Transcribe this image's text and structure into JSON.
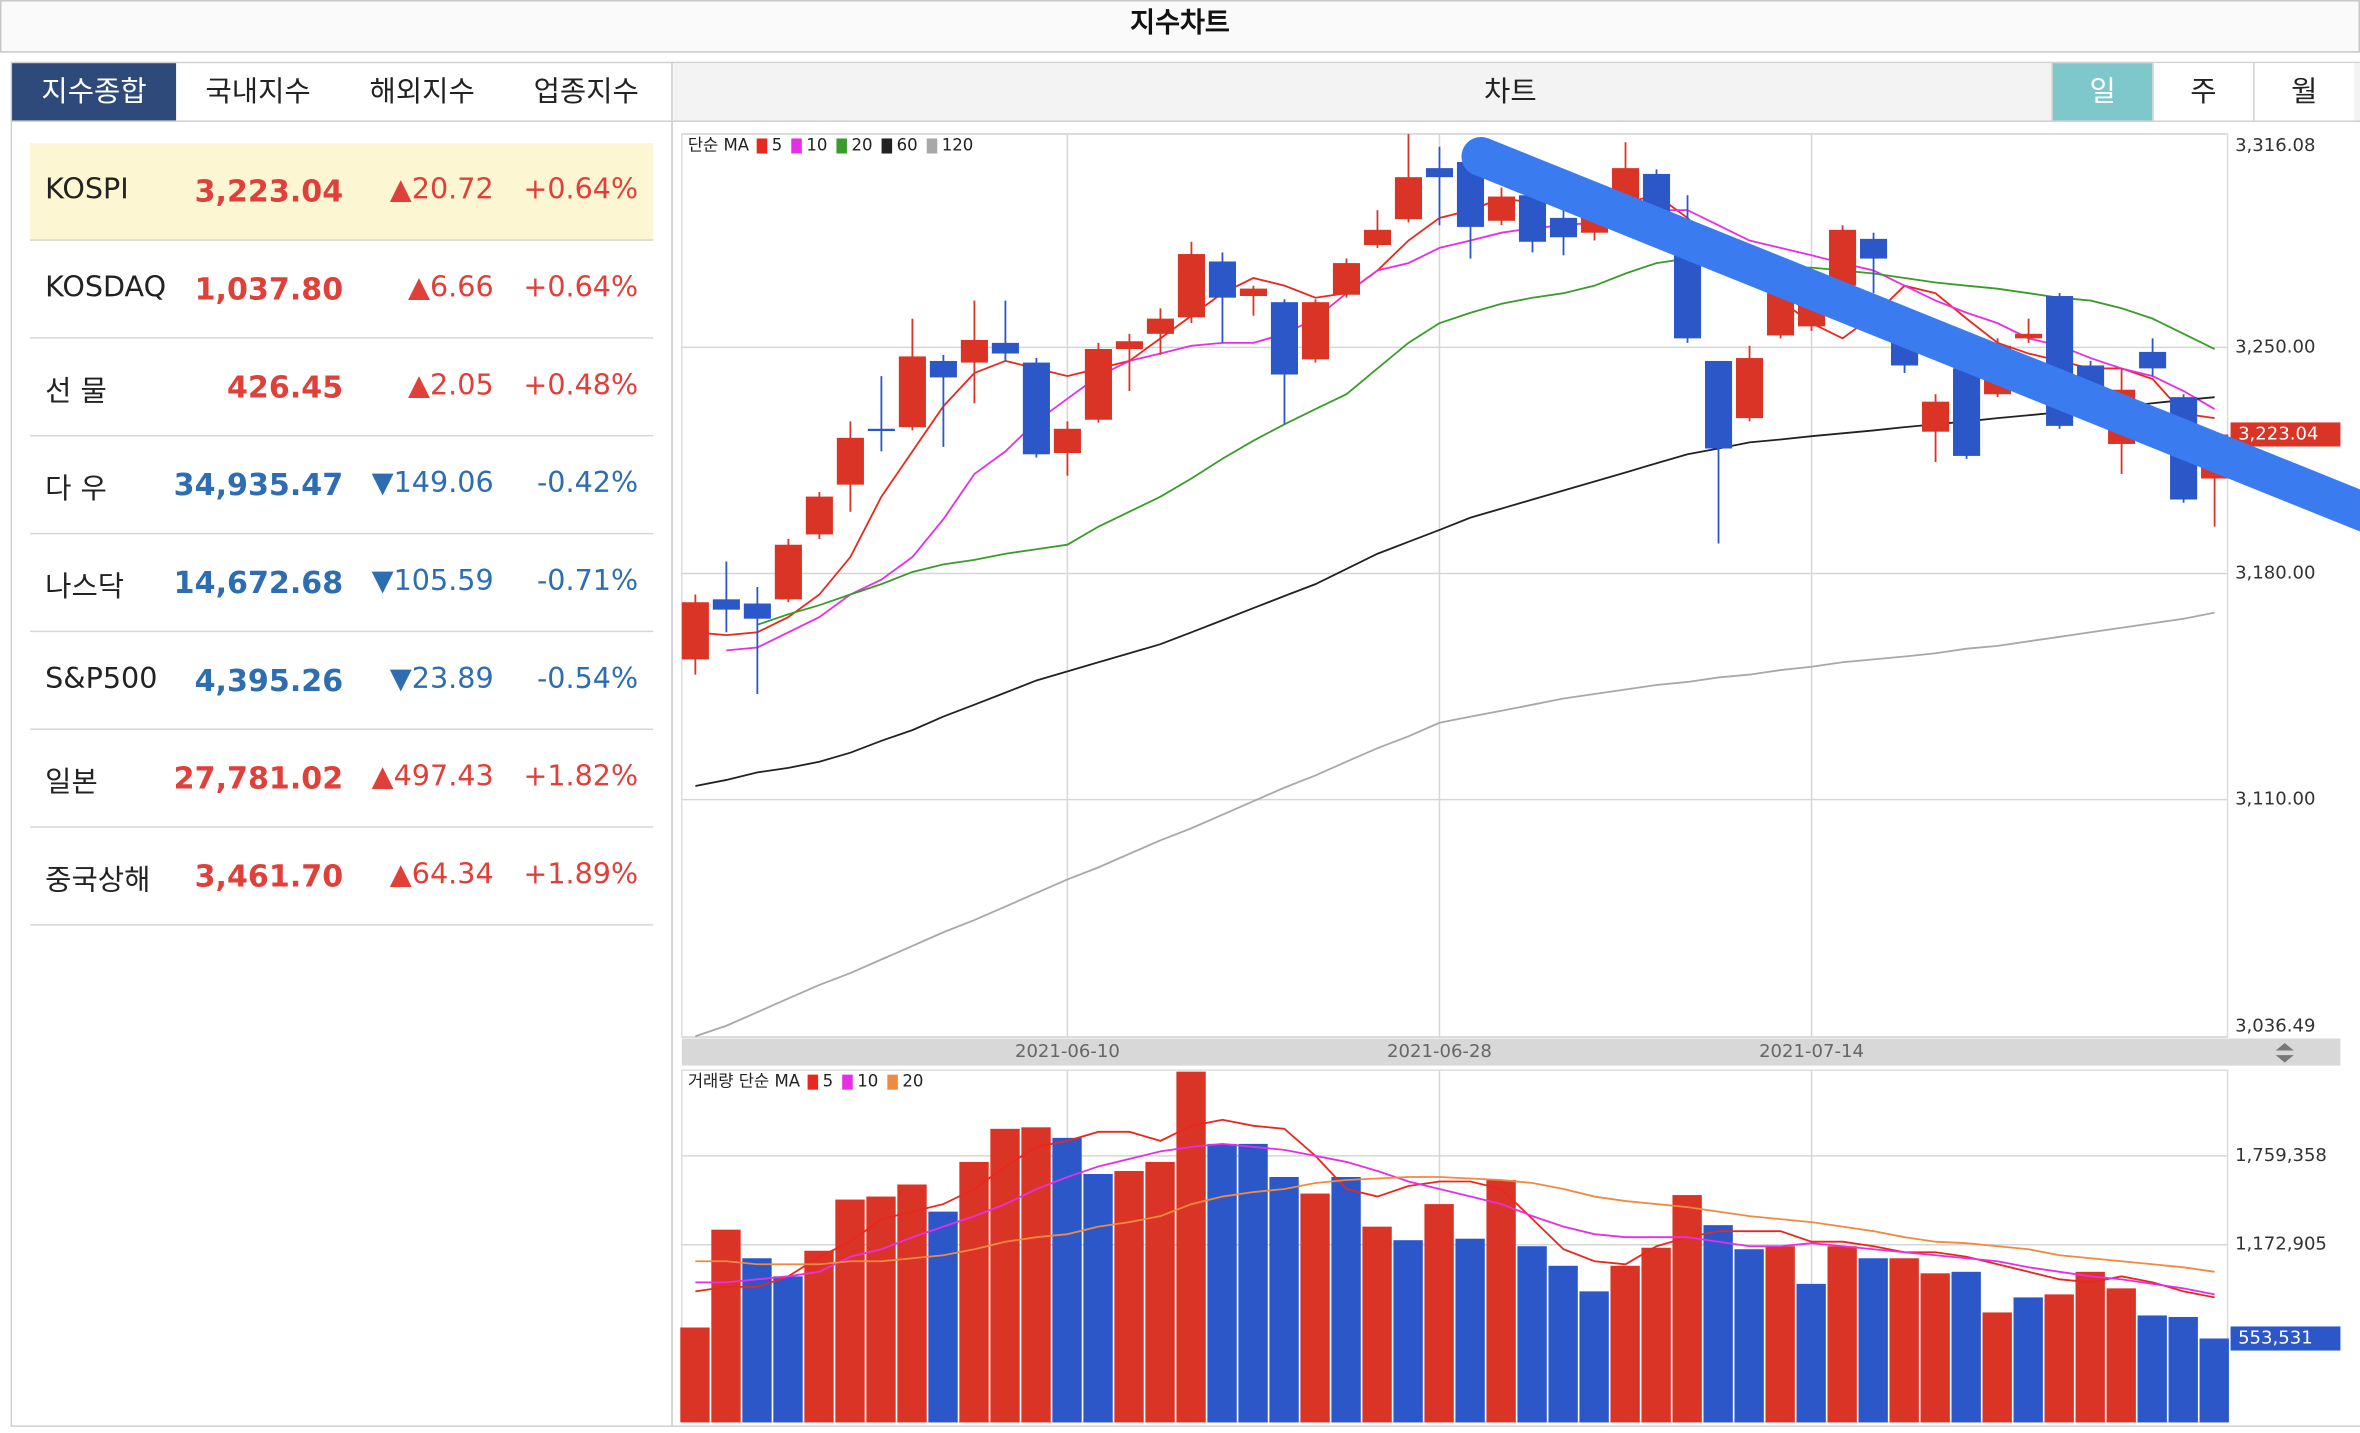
{
  "header": {
    "title": "지수차트"
  },
  "tabs": {
    "items": [
      "지수종합",
      "국내지수",
      "해외지수",
      "업종지수"
    ],
    "active": 0
  },
  "index_list": [
    {
      "name": "KOSPI",
      "price": "3,223.04",
      "change": "▲20.72",
      "change_pct": "+0.64%",
      "color": "#e0403a"
    },
    {
      "name": "KOSDAQ",
      "price": "1,037.80",
      "change": "▲6.66",
      "change_pct": "+0.64%",
      "color": "#e0403a"
    },
    {
      "name": "선 물",
      "price": "426.45",
      "change": "▲2.05",
      "change_pct": "+0.48%",
      "color": "#e0403a"
    },
    {
      "name": "다 우",
      "price": "34,935.47",
      "change": "▼149.06",
      "change_pct": "-0.42%",
      "color": "#2e6db0"
    },
    {
      "name": "나스닥",
      "price": "14,672.68",
      "change": "▼105.59",
      "change_pct": "-0.71%",
      "color": "#2e6db0"
    },
    {
      "name": "S&P500",
      "price": "4,395.26",
      "change": "▼23.89",
      "change_pct": "-0.54%",
      "color": "#2e6db0"
    },
    {
      "name": "일본",
      "price": "27,781.02",
      "change": "▲497.43",
      "change_pct": "+1.82%",
      "color": "#e0403a"
    },
    {
      "name": "중국상해",
      "price": "3,461.70",
      "change": "▲64.34",
      "change_pct": "+1.89%",
      "color": "#e0403a"
    }
  ],
  "chart_panel": {
    "title": "차트",
    "periods": [
      "일",
      "주",
      "월"
    ],
    "active": 0
  },
  "chart_data": [
    {
      "type": "candlestick",
      "legend_title": "단순 MA",
      "categories": [
        null,
        null,
        null,
        null,
        null,
        null,
        null,
        null,
        null,
        null,
        null,
        null,
        "2021-06-10",
        null,
        null,
        null,
        null,
        null,
        null,
        null,
        null,
        null,
        null,
        null,
        "2021-06-28",
        null,
        null,
        null,
        null,
        null,
        null,
        null,
        null,
        null,
        null,
        null,
        "2021-07-14",
        null,
        null,
        null,
        null,
        null,
        null,
        null,
        null,
        null,
        null,
        null,
        null,
        null
      ],
      "open": [
        3153.4,
        3172.0,
        3170.7,
        3172.0,
        3192.1,
        3207.5,
        3224.8,
        3225.3,
        3245.8,
        3245.3,
        3251.4,
        3245.3,
        3217.3,
        3227.6,
        3249.5,
        3254.2,
        3259.3,
        3276.6,
        3265.9,
        3264.0,
        3246.3,
        3266.3,
        3281.7,
        3289.7,
        3305.5,
        3307.4,
        3289.2,
        3297.1,
        3290.1,
        3285.5,
        3295.7,
        3303.7,
        3287.8,
        3245.8,
        3228.1,
        3253.7,
        3256.5,
        3269.1,
        3283.6,
        3258.9,
        3223.9,
        3243.5,
        3235.5,
        3252.8,
        3265.9,
        3244.4,
        3220.1,
        3248.6,
        3234.6,
        3209.4
      ],
      "high": [
        3173.5,
        3183.7,
        3175.8,
        3190.7,
        3205.2,
        3227.1,
        3241.1,
        3258.9,
        3247.7,
        3264.5,
        3264.5,
        3246.7,
        3227.1,
        3251.4,
        3254.2,
        3262.1,
        3282.7,
        3279.4,
        3269.1,
        3264.9,
        3264.9,
        3277.5,
        3292.5,
        3316.08,
        3312.1,
        3311.1,
        3299.5,
        3298.1,
        3292.5,
        3298.1,
        3313.5,
        3305.1,
        3297.1,
        3245.8,
        3250.5,
        3268.2,
        3272.9,
        3287.8,
        3285.5,
        3262.1,
        3235.5,
        3245.8,
        3252.8,
        3258.9,
        3266.8,
        3245.8,
        3243.5,
        3252.8,
        3235.5,
        3223.9
      ],
      "low": [
        3148.7,
        3161.8,
        3142.7,
        3171.1,
        3190.7,
        3199.1,
        3217.8,
        3224.3,
        3219.2,
        3232.7,
        3245.8,
        3215.9,
        3210.3,
        3226.7,
        3236.5,
        3247.7,
        3257.5,
        3251.4,
        3259.8,
        3226.2,
        3245.3,
        3265.4,
        3280.8,
        3288.7,
        3287.8,
        3277.5,
        3287.8,
        3279.4,
        3278.5,
        3283.1,
        3294.8,
        3284.1,
        3251.4,
        3189.3,
        3227.1,
        3252.8,
        3255.1,
        3266.8,
        3266.8,
        3242.1,
        3214.5,
        3215.5,
        3234.6,
        3251.4,
        3224.8,
        3230.9,
        3210.8,
        3241.1,
        3201.9,
        3194.5
      ],
      "close": [
        3171.1,
        3168.8,
        3166.0,
        3188.9,
        3203.8,
        3222.0,
        3224.3,
        3247.2,
        3240.7,
        3252.3,
        3248.1,
        3216.9,
        3224.8,
        3249.5,
        3251.9,
        3258.9,
        3278.9,
        3265.4,
        3268.2,
        3241.6,
        3264.0,
        3276.1,
        3286.4,
        3302.7,
        3302.7,
        3287.3,
        3296.7,
        3282.7,
        3284.1,
        3295.7,
        3305.5,
        3285.5,
        3252.8,
        3218.7,
        3246.7,
        3266.8,
        3271.5,
        3286.4,
        3277.5,
        3244.4,
        3233.2,
        3216.4,
        3250.5,
        3254.2,
        3225.7,
        3231.8,
        3236.9,
        3243.5,
        3202.9,
        3223.04
      ],
      "value_labels": [
        null,
        null,
        null,
        null,
        null,
        null,
        null,
        null,
        null,
        null,
        null,
        null,
        null,
        null,
        null,
        null,
        null,
        null,
        null,
        null,
        null,
        null,
        null,
        null,
        null,
        null,
        null,
        null,
        null,
        null,
        null,
        null,
        null,
        null,
        null,
        null,
        null,
        null,
        null,
        null,
        null,
        null,
        null,
        null,
        null,
        null,
        null,
        null,
        null,
        "3,223.04"
      ],
      "up_color": "#d93425",
      "down_color": "#2b57c8",
      "ylim": [
        3036.49,
        3316.08
      ],
      "yticks": [
        {
          "value": 3036.49,
          "label": "3,036.49"
        },
        {
          "value": 3110,
          "label": "3,110.00"
        },
        {
          "value": 3180,
          "label": "3,180.00"
        },
        {
          "value": 3250,
          "label": "3,250.00"
        },
        {
          "value": 3316.08,
          "label": "3,316.08"
        }
      ],
      "grid": true,
      "series": [
        {
          "name": "5",
          "color": "#e8281e",
          "values": [
            3161.8,
            3160.9,
            3161.8,
            3166.5,
            3173.5,
            3185.1,
            3203.8,
            3217.8,
            3231.8,
            3242.1,
            3245.8,
            3243.5,
            3241.1,
            3243.5,
            3245.8,
            3252.8,
            3259.8,
            3266.8,
            3271.5,
            3269.1,
            3265.4,
            3266.8,
            3273.8,
            3283.1,
            3290.1,
            3292.5,
            3296.2,
            3294.8,
            3294.8,
            3292.5,
            3294.8,
            3297.1,
            3290.1,
            3280.8,
            3271.5,
            3264.5,
            3257.5,
            3252.8,
            3259.8,
            3269.1,
            3266.8,
            3258.9,
            3251.4,
            3248.1,
            3245.8,
            3243.5,
            3243.5,
            3240.2,
            3229.5,
            3228.1
          ]
        },
        {
          "name": "10",
          "color": "#e62ee6",
          "values": [
            null,
            3156.2,
            3157.1,
            3161.8,
            3166.5,
            3173.5,
            3178.1,
            3185.1,
            3196.8,
            3210.8,
            3217.8,
            3227.1,
            3234.1,
            3241.1,
            3245.8,
            3248.1,
            3250.5,
            3251.4,
            3251.4,
            3254.2,
            3258.9,
            3266.8,
            3273.8,
            3276.1,
            3280.8,
            3283.1,
            3285.5,
            3286.9,
            3287.8,
            3288.7,
            3290.1,
            3292.5,
            3292.5,
            3287.8,
            3283.1,
            3280.8,
            3278.5,
            3276.1,
            3273.8,
            3269.1,
            3264.5,
            3260.7,
            3257.5,
            3252.8,
            3250.5,
            3246.7,
            3243.5,
            3241.1,
            3236.5,
            3230.9
          ]
        },
        {
          "name": "20",
          "color": "#3a9c2a",
          "values": [
            null,
            null,
            3164.1,
            3167.4,
            3170.2,
            3173.5,
            3176.7,
            3180.5,
            3182.8,
            3184.2,
            3186.1,
            3187.5,
            3188.9,
            3194.5,
            3199.1,
            3203.8,
            3209.4,
            3215.5,
            3221.1,
            3226.2,
            3230.9,
            3235.5,
            3243.5,
            3251.4,
            3257.5,
            3260.7,
            3263.5,
            3265.4,
            3266.8,
            3269.1,
            3272.9,
            3276.1,
            3277.5,
            3276.1,
            3274.7,
            3274.7,
            3274.7,
            3273.8,
            3272.9,
            3271.5,
            3270.1,
            3269.1,
            3268.2,
            3266.8,
            3265.4,
            3264.5,
            3262.1,
            3258.9,
            3254.2,
            3249.5
          ]
        },
        {
          "name": "60",
          "color": "#222222",
          "values": [
            3114.2,
            3116.1,
            3118.4,
            3119.8,
            3121.7,
            3124.5,
            3128.2,
            3131.5,
            3135.7,
            3139.4,
            3143.1,
            3146.9,
            3149.7,
            3152.5,
            3155.3,
            3158.1,
            3161.8,
            3165.5,
            3169.3,
            3173.0,
            3176.7,
            3181.4,
            3186.1,
            3189.8,
            3193.5,
            3197.3,
            3200.1,
            3202.9,
            3205.7,
            3208.5,
            3211.3,
            3214.1,
            3216.9,
            3218.7,
            3220.6,
            3221.5,
            3222.5,
            3223.4,
            3224.3,
            3225.3,
            3226.2,
            3227.1,
            3228.1,
            3229.0,
            3229.9,
            3230.9,
            3231.8,
            3232.7,
            3233.7,
            3234.6
          ]
        },
        {
          "name": "120",
          "color": "#a8a8a8",
          "values": [
            3036.7,
            3040.0,
            3044.2,
            3048.4,
            3052.6,
            3056.3,
            3060.5,
            3064.7,
            3068.9,
            3072.7,
            3076.9,
            3081.1,
            3085.3,
            3089.0,
            3093.2,
            3097.4,
            3101.1,
            3105.3,
            3109.5,
            3113.7,
            3117.5,
            3121.7,
            3125.9,
            3129.6,
            3133.8,
            3135.7,
            3137.5,
            3139.4,
            3141.3,
            3142.7,
            3144.1,
            3145.5,
            3146.4,
            3147.8,
            3148.7,
            3150.1,
            3151.1,
            3152.5,
            3153.4,
            3154.3,
            3155.3,
            3156.7,
            3157.6,
            3159.0,
            3160.4,
            3161.8,
            3163.2,
            3164.6,
            3166.0,
            3167.9
          ]
        }
      ]
    },
    {
      "type": "bar",
      "legend_title": "거래량 단순 MA",
      "values": [
        626220,
        1272320,
        1083460,
        964180,
        1133160,
        1471120,
        1491000,
        1570520,
        1391600,
        1719620,
        1938300,
        1948240,
        1878660,
        1640100,
        1659980,
        1719620,
        2316020,
        1838900,
        1838900,
        1620220,
        1510880,
        1620220,
        1292200,
        1202740,
        1441300,
        1212680,
        1600340,
        1162980,
        1033760,
        864780,
        1033760,
        1153040,
        1500940,
        1302140,
        1143100,
        1162980,
        914480,
        1162980,
        1083460,
        1083460,
        984060,
        994000,
        725620,
        825020,
        844900,
        994000,
        884660,
        705740,
        695800,
        553531
      ],
      "value_labels": [
        null,
        null,
        null,
        null,
        null,
        null,
        null,
        null,
        null,
        null,
        null,
        null,
        null,
        null,
        null,
        null,
        null,
        null,
        null,
        null,
        null,
        null,
        null,
        null,
        null,
        null,
        null,
        null,
        null,
        null,
        null,
        null,
        null,
        null,
        null,
        null,
        null,
        null,
        null,
        null,
        null,
        null,
        null,
        null,
        null,
        null,
        null,
        null,
        null,
        "553,531"
      ],
      "colors": [
        "#d93425",
        "#d93425",
        "#2b57c8",
        "#2b57c8",
        "#d93425",
        "#d93425",
        "#d93425",
        "#d93425",
        "#2b57c8",
        "#d93425",
        "#d93425",
        "#d93425",
        "#2b57c8",
        "#2b57c8",
        "#d93425",
        "#d93425",
        "#d93425",
        "#2b57c8",
        "#2b57c8",
        "#2b57c8",
        "#d93425",
        "#2b57c8",
        "#d93425",
        "#2b57c8",
        "#d93425",
        "#2b57c8",
        "#d93425",
        "#2b57c8",
        "#2b57c8",
        "#2b57c8",
        "#d93425",
        "#d93425",
        "#d93425",
        "#2b57c8",
        "#2b57c8",
        "#d93425",
        "#2b57c8",
        "#d93425",
        "#2b57c8",
        "#d93425",
        "#d93425",
        "#2b57c8",
        "#d93425",
        "#2b57c8",
        "#d93425",
        "#d93425",
        "#d93425",
        "#2b57c8",
        "#2b57c8",
        "#2b57c8"
      ],
      "ylim": [
        0,
        2326000
      ],
      "yticks": [
        {
          "value": 1172905,
          "label": "1,172,905"
        },
        {
          "value": 1759358,
          "label": "1,759,358"
        }
      ],
      "grid": true,
      "series": [
        {
          "name": "5",
          "color": "#e8281e",
          "values": [
            864780,
            894600,
            894600,
            964180,
            1093400,
            1192800,
            1341900,
            1391600,
            1441300,
            1540700,
            1689800,
            1819020,
            1858780,
            1918420,
            1918420,
            1858780,
            1958180,
            1997940,
            1958180,
            1938300,
            1759380,
            1540700,
            1491000,
            1560580,
            1590400,
            1590400,
            1540700,
            1341900,
            1143100,
            1063580,
            1043700,
            1162980,
            1222620,
            1262380,
            1262380,
            1262380,
            1192800,
            1192800,
            1162980,
            1123220,
            1123220,
            1093400,
            1043700,
            994000,
            944300,
            924420,
            964180,
            924420,
            864780,
            825020
          ]
        },
        {
          "name": "10",
          "color": "#e62ee6",
          "values": [
            924420,
            924420,
            944300,
            964180,
            994000,
            1093400,
            1143100,
            1222620,
            1292200,
            1361780,
            1441300,
            1540700,
            1620220,
            1689800,
            1739500,
            1789200,
            1819020,
            1838900,
            1819020,
            1799140,
            1759380,
            1719620,
            1659980,
            1590400,
            1540700,
            1491000,
            1441300,
            1361780,
            1292200,
            1242500,
            1222620,
            1222620,
            1222620,
            1192800,
            1162980,
            1162980,
            1182860,
            1162980,
            1143100,
            1123220,
            1103340,
            1083460,
            1063580,
            1023820,
            994000,
            964180,
            944300,
            914480,
            884660,
            844900
          ]
        },
        {
          "name": "20",
          "color": "#f08a40",
          "values": [
            1063580,
            1063580,
            1043700,
            1043700,
            1043700,
            1063580,
            1063580,
            1083460,
            1103340,
            1143100,
            1192800,
            1222620,
            1242500,
            1292200,
            1322020,
            1361780,
            1441300,
            1491000,
            1520820,
            1540700,
            1580460,
            1600340,
            1610280,
            1620220,
            1620220,
            1610280,
            1600340,
            1580460,
            1540700,
            1491000,
            1461180,
            1441300,
            1421420,
            1391600,
            1361780,
            1341900,
            1322020,
            1292200,
            1262380,
            1222620,
            1192800,
            1182860,
            1162980,
            1143100,
            1103340,
            1083460,
            1063580,
            1043700,
            1023820,
            994000
          ]
        }
      ]
    }
  ]
}
